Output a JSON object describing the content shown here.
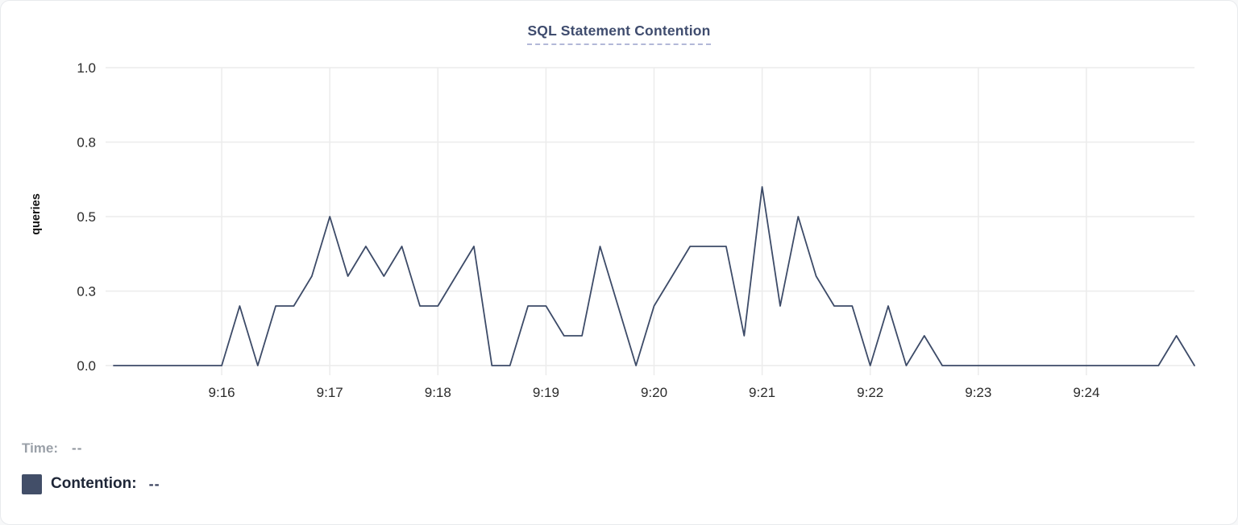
{
  "header": {
    "title": "SQL Statement Contention"
  },
  "colors": {
    "title": "#3f4c6e",
    "title_underline": "#b2b8d8",
    "line": "#3d4b68",
    "grid": "#ececec",
    "tick_text": "#2b2b2b",
    "axis_label": "#111111",
    "swatch": "#424e68",
    "legend_time_label": "#9aa0a8",
    "legend_time_value": "#8e939b",
    "legend_contention_label": "#1e2637",
    "legend_contention_value": "#39415e"
  },
  "legend": {
    "time_label": "Time:",
    "time_value": "--",
    "contention_label": "Contention:",
    "contention_value": "--"
  },
  "chart_data": {
    "type": "line",
    "title": "SQL Statement Contention",
    "xlabel": "",
    "ylabel": "queries",
    "ylim": [
      0,
      1.0
    ],
    "grid": true,
    "legend_position": "bottom-left",
    "x_domain": [
      "9:15:00",
      "9:25:00"
    ],
    "y_ticks": [
      {
        "label": "0.0",
        "value": 0
      },
      {
        "label": "0.3",
        "value": 0.25
      },
      {
        "label": "0.5",
        "value": 0.5
      },
      {
        "label": "0.8",
        "value": 0.75
      },
      {
        "label": "1.0",
        "value": 1.0
      }
    ],
    "x_ticks": [
      "9:16",
      "9:17",
      "9:18",
      "9:19",
      "9:20",
      "9:21",
      "9:22",
      "9:23",
      "9:24"
    ],
    "series": [
      {
        "name": "Contention",
        "unit": "queries",
        "color": "#3d4b68",
        "points": [
          [
            "9:15:00",
            0
          ],
          [
            "9:15:10",
            0
          ],
          [
            "9:15:20",
            0
          ],
          [
            "9:15:30",
            0
          ],
          [
            "9:15:40",
            0
          ],
          [
            "9:15:50",
            0
          ],
          [
            "9:16:00",
            0
          ],
          [
            "9:16:10",
            0.2
          ],
          [
            "9:16:20",
            0
          ],
          [
            "9:16:30",
            0.2
          ],
          [
            "9:16:40",
            0.2
          ],
          [
            "9:16:50",
            0.3
          ],
          [
            "9:17:00",
            0.5
          ],
          [
            "9:17:10",
            0.3
          ],
          [
            "9:17:20",
            0.4
          ],
          [
            "9:17:30",
            0.3
          ],
          [
            "9:17:40",
            0.4
          ],
          [
            "9:17:50",
            0.2
          ],
          [
            "9:18:00",
            0.2
          ],
          [
            "9:18:10",
            0.3
          ],
          [
            "9:18:20",
            0.4
          ],
          [
            "9:18:30",
            0
          ],
          [
            "9:18:40",
            0
          ],
          [
            "9:18:50",
            0.2
          ],
          [
            "9:19:00",
            0.2
          ],
          [
            "9:19:10",
            0.1
          ],
          [
            "9:19:20",
            0.1
          ],
          [
            "9:19:30",
            0.4
          ],
          [
            "9:19:40",
            0.2
          ],
          [
            "9:19:50",
            0
          ],
          [
            "9:20:00",
            0.2
          ],
          [
            "9:20:10",
            0.3
          ],
          [
            "9:20:20",
            0.4
          ],
          [
            "9:20:30",
            0.4
          ],
          [
            "9:20:40",
            0.4
          ],
          [
            "9:20:50",
            0.1
          ],
          [
            "9:21:00",
            0.6
          ],
          [
            "9:21:10",
            0.2
          ],
          [
            "9:21:20",
            0.5
          ],
          [
            "9:21:30",
            0.3
          ],
          [
            "9:21:40",
            0.2
          ],
          [
            "9:21:50",
            0.2
          ],
          [
            "9:22:00",
            0
          ],
          [
            "9:22:10",
            0.2
          ],
          [
            "9:22:20",
            0
          ],
          [
            "9:22:30",
            0.1
          ],
          [
            "9:22:40",
            0
          ],
          [
            "9:22:50",
            0
          ],
          [
            "9:23:00",
            0
          ],
          [
            "9:23:10",
            0
          ],
          [
            "9:23:20",
            0
          ],
          [
            "9:23:30",
            0
          ],
          [
            "9:23:40",
            0
          ],
          [
            "9:23:50",
            0
          ],
          [
            "9:24:00",
            0
          ],
          [
            "9:24:10",
            0
          ],
          [
            "9:24:20",
            0
          ],
          [
            "9:24:30",
            0
          ],
          [
            "9:24:40",
            0
          ],
          [
            "9:24:50",
            0.1
          ],
          [
            "9:25:00",
            0
          ]
        ]
      }
    ]
  }
}
